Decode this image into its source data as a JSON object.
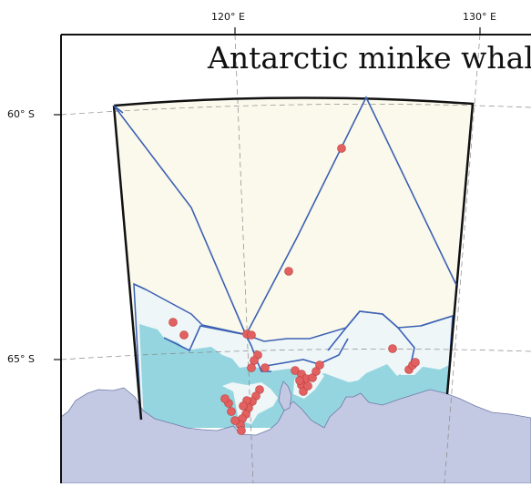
{
  "map": {
    "title": "Antarctic minke whale",
    "longitude_labels": [
      "120° E",
      "130° E"
    ],
    "latitude_labels": [
      "60° S",
      "65° S"
    ],
    "colors": {
      "survey_area": "#fbf9ec",
      "pack_ice_zone": "#eef6f8",
      "fast_ice": "#95d5e0",
      "land": "#c3c8e3",
      "track_line": "#3c61b3",
      "sighting": "#e2605f",
      "graticule": "#888888"
    },
    "legend": []
  }
}
